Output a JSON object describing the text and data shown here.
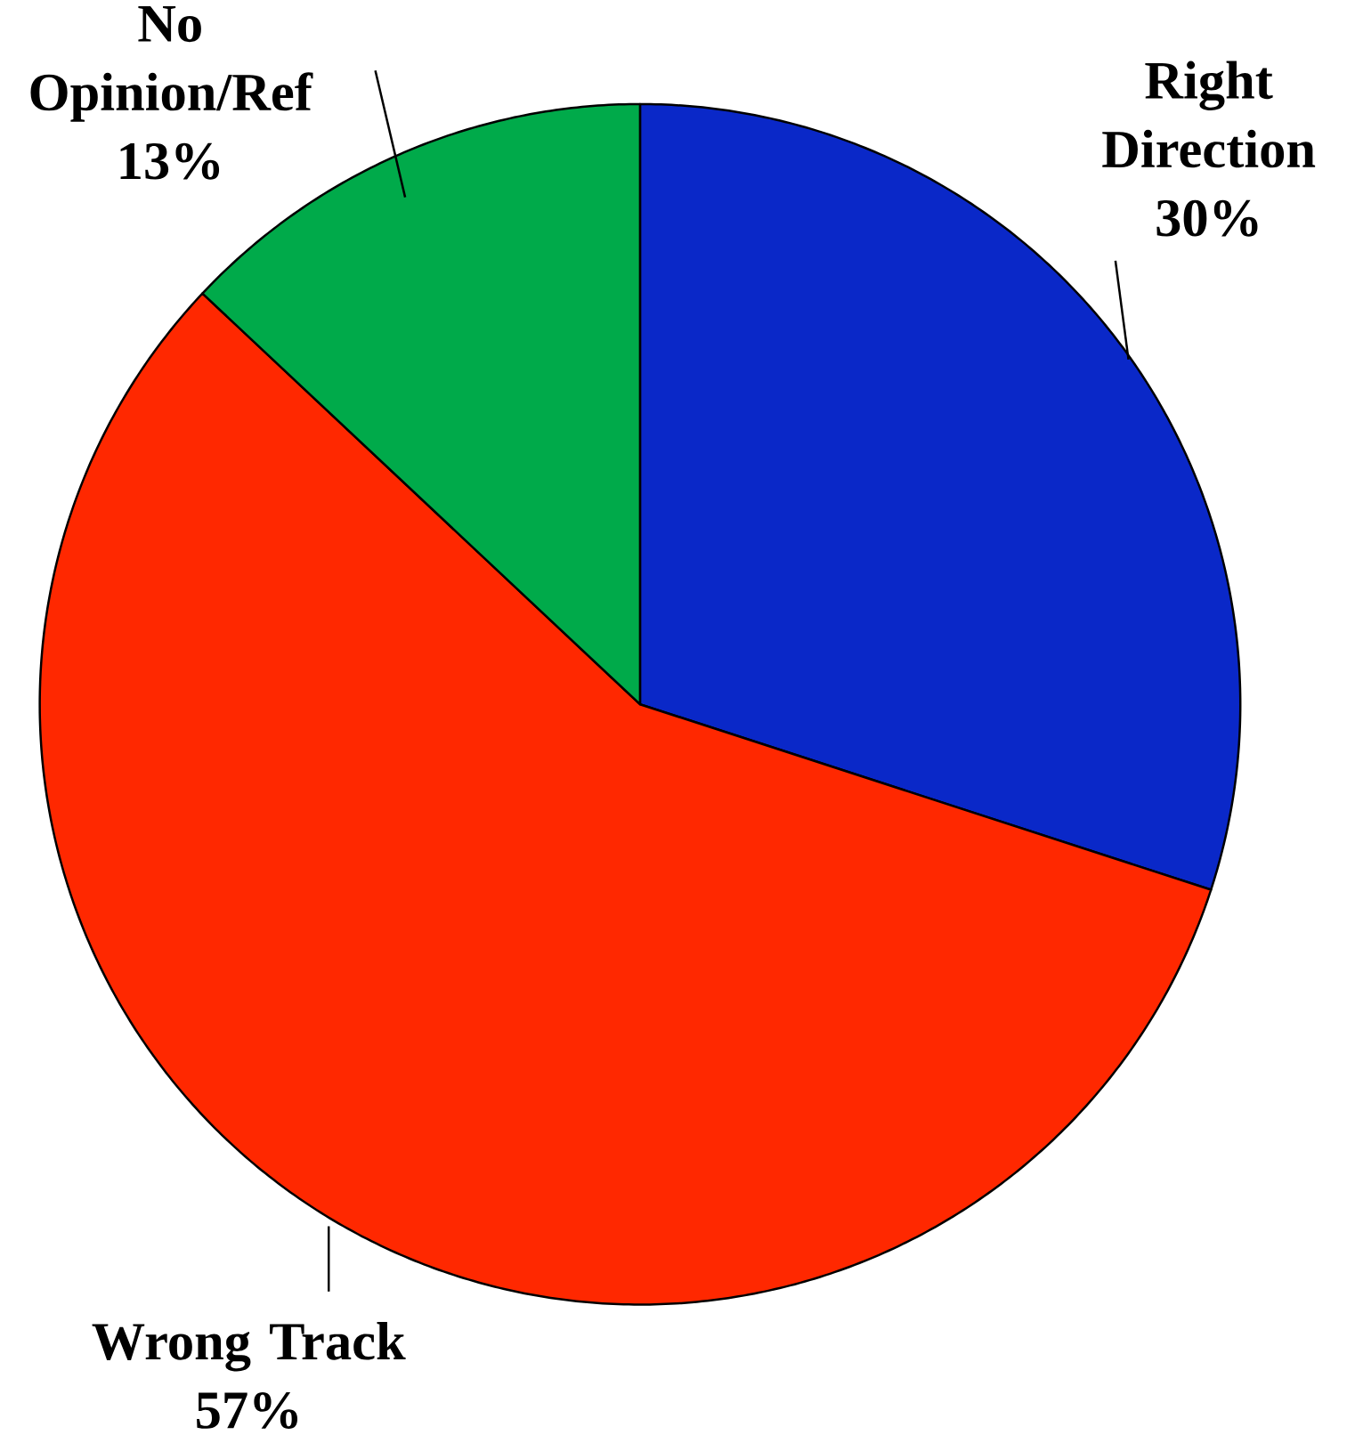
{
  "chart_data": {
    "type": "pie",
    "categories": [
      "Right Direction",
      "Wrong Track",
      "No Opinion/Ref"
    ],
    "values": [
      30,
      57,
      13
    ],
    "value_labels": [
      "30%",
      "57%",
      "13%"
    ],
    "colors": [
      "#0a28c8",
      "#ff2800",
      "#00aa4a"
    ]
  }
}
